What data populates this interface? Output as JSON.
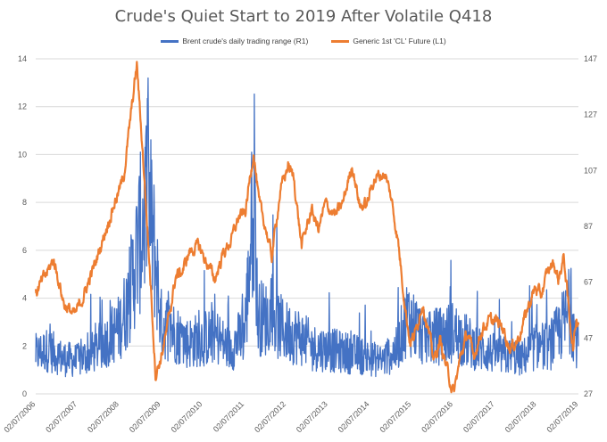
{
  "chart_data": {
    "type": "line",
    "title": "Crude's Quiet Start to 2019 After Volatile Q418",
    "x_tick_labels": [
      "02/07/2006",
      "02/07/2007",
      "02/07/2008",
      "02/07/2009",
      "02/07/2010",
      "02/07/2011",
      "02/07/2012",
      "02/07/2013",
      "02/07/2014",
      "02/07/2015",
      "02/07/2016",
      "02/07/2017",
      "02/07/2018",
      "02/07/2019"
    ],
    "left_axis": {
      "ylim": [
        0,
        14
      ],
      "ticks": [
        0,
        2,
        4,
        6,
        8,
        10,
        12,
        14
      ]
    },
    "right_axis": {
      "ylim": [
        27,
        147
      ],
      "ticks": [
        27,
        47,
        67,
        87,
        107,
        127,
        147
      ]
    },
    "grid": true,
    "legend_position": "top",
    "series": [
      {
        "name": "Brent crude's daily trading range (R1)",
        "color": "#4472C4",
        "axis": "left",
        "x": [
          "2006-02-07",
          "2006-06-01",
          "2006-10-01",
          "2007-02-07",
          "2007-06-01",
          "2007-10-01",
          "2008-02-07",
          "2008-05-01",
          "2008-07-15",
          "2008-10-15",
          "2009-01-01",
          "2009-02-07",
          "2009-06-01",
          "2009-10-01",
          "2010-02-07",
          "2010-06-01",
          "2010-10-01",
          "2011-02-07",
          "2011-03-07",
          "2011-05-05",
          "2011-06-01",
          "2011-10-01",
          "2012-02-07",
          "2012-06-01",
          "2012-10-01",
          "2013-02-07",
          "2013-06-01",
          "2013-10-01",
          "2014-02-07",
          "2014-06-01",
          "2014-10-01",
          "2015-01-01",
          "2015-02-07",
          "2015-06-01",
          "2015-10-01",
          "2016-02-07",
          "2016-06-01",
          "2016-10-01",
          "2017-02-07",
          "2017-06-01",
          "2017-10-01",
          "2018-02-07",
          "2018-06-01",
          "2018-10-01",
          "2018-12-01",
          "2019-02-07"
        ],
        "y": [
          1.8,
          2.0,
          1.6,
          1.5,
          1.8,
          2.3,
          3.0,
          4.2,
          6.5,
          9.0,
          5.5,
          3.2,
          2.8,
          2.3,
          2.5,
          2.6,
          2.0,
          2.8,
          4.5,
          9.5,
          3.5,
          3.3,
          2.8,
          2.6,
          2.1,
          2.0,
          1.9,
          1.8,
          1.6,
          1.5,
          2.0,
          3.5,
          3.3,
          2.5,
          2.6,
          2.8,
          2.4,
          2.0,
          1.8,
          1.7,
          1.6,
          2.2,
          2.1,
          3.2,
          3.6,
          2.0
        ]
      },
      {
        "name": "Generic 1st 'CL' Future  (L1)",
        "color": "#ED7D31",
        "axis": "right",
        "x": [
          "2006-02-07",
          "2006-04-15",
          "2006-07-15",
          "2006-10-15",
          "2007-01-15",
          "2007-04-01",
          "2007-07-15",
          "2007-10-15",
          "2008-01-02",
          "2008-03-15",
          "2008-05-15",
          "2008-07-11",
          "2008-09-15",
          "2008-11-15",
          "2008-12-21",
          "2009-02-07",
          "2009-04-01",
          "2009-06-15",
          "2009-08-15",
          "2009-10-15",
          "2010-01-01",
          "2010-05-25",
          "2010-08-01",
          "2010-10-15",
          "2010-12-15",
          "2011-02-15",
          "2011-04-29",
          "2011-06-15",
          "2011-08-15",
          "2011-10-04",
          "2011-12-15",
          "2012-02-24",
          "2012-04-15",
          "2012-06-21",
          "2012-09-15",
          "2012-11-15",
          "2013-01-15",
          "2013-04-15",
          "2013-06-15",
          "2013-09-06",
          "2013-11-15",
          "2014-01-15",
          "2014-03-15",
          "2014-06-20",
          "2014-08-15",
          "2014-10-15",
          "2014-12-15",
          "2015-01-28",
          "2015-03-15",
          "2015-05-15",
          "2015-08-24",
          "2015-10-15",
          "2015-12-15",
          "2016-02-11",
          "2016-04-15",
          "2016-06-15",
          "2016-08-02",
          "2016-10-15",
          "2016-12-15",
          "2017-02-15",
          "2017-04-15",
          "2017-06-21",
          "2017-09-01",
          "2017-11-15",
          "2018-01-25",
          "2018-03-15",
          "2018-05-15",
          "2018-07-03",
          "2018-08-15",
          "2018-10-03",
          "2018-11-15",
          "2018-12-24",
          "2019-01-15",
          "2019-02-07"
        ],
        "y": [
          63,
          68,
          75,
          59,
          55,
          62,
          74,
          86,
          96,
          104,
          125,
          145,
          104,
          62,
          34,
          40,
          50,
          69,
          71,
          78,
          80,
          68,
          77,
          82,
          90,
          92,
          114,
          95,
          86,
          76,
          99,
          109,
          104,
          80,
          93,
          86,
          95,
          91,
          95,
          109,
          94,
          95,
          104,
          106,
          97,
          81,
          58,
          45,
          49,
          60,
          39,
          46,
          36,
          27,
          41,
          49,
          40,
          50,
          53,
          53,
          51,
          43,
          47,
          57,
          65,
          62,
          71,
          74,
          68,
          76,
          57,
          43,
          53,
          54
        ]
      }
    ]
  }
}
